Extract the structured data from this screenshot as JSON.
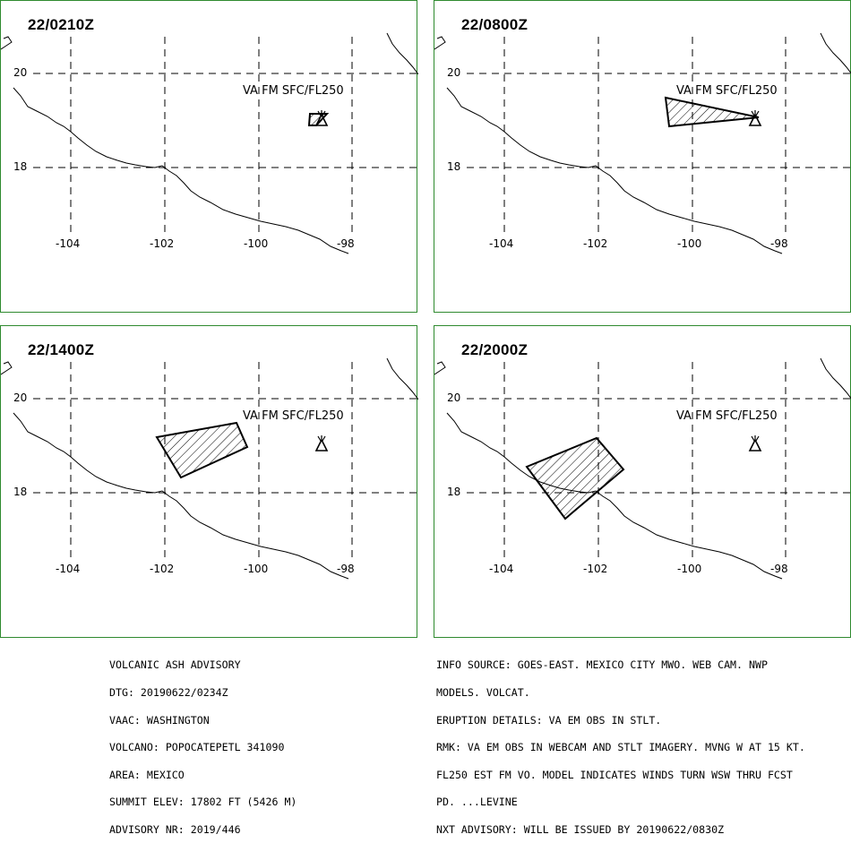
{
  "panels": [
    {
      "time": "22/0210Z",
      "label": "VA FM SFC/FL250",
      "ash": [
        [
          345,
          126
        ],
        [
          364,
          126
        ],
        [
          352,
          139
        ],
        [
          344,
          139
        ]
      ]
    },
    {
      "time": "22/0800Z",
      "label": "VA FM SFC/FL250",
      "ash": [
        [
          742,
          108
        ],
        [
          846,
          130
        ],
        [
          746,
          140
        ]
      ]
    },
    {
      "time": "22/1400Z",
      "label": "VA FM SFC/FL250",
      "ash": [
        [
          174,
          487
        ],
        [
          263,
          471
        ],
        [
          275,
          498
        ],
        [
          201,
          532
        ]
      ]
    },
    {
      "time": "22/2000Z",
      "label": "VA FM SFC/FL250",
      "ash": [
        [
          587,
          520
        ],
        [
          665,
          488
        ],
        [
          695,
          523
        ],
        [
          630,
          578
        ]
      ]
    }
  ],
  "axes": {
    "lat_labels": [
      "20",
      "18"
    ],
    "lon_labels": [
      "-104",
      "-102",
      "-100",
      "-98"
    ]
  },
  "advisory_left": [
    "VOLCANIC ASH ADVISORY",
    "DTG: 20190622/0234Z",
    "VAAC: WASHINGTON",
    "VOLCANO: POPOCATEPETL 341090",
    "AREA: MEXICO",
    "SUMMIT ELEV: 17802 FT (5426 M)",
    "ADVISORY NR: 2019/446"
  ],
  "advisory_right": [
    "INFO SOURCE: GOES-EAST. MEXICO CITY MWO. WEB CAM. NWP",
    "MODELS. VOLCAT.",
    "ERUPTION DETAILS: VA EM OBS IN STLT.",
    "RMK: VA EM OBS IN WEBCAM AND STLT IMAGERY. MVNG W AT 15 KT.",
    "FL250 EST FM VO. MODEL INDICATES WINDS TURN WSW THRU FCST",
    "PD. ...LEVINE",
    "NXT ADVISORY: WILL BE ISSUED BY 20190622/0830Z"
  ],
  "colors": {
    "panel_border": "#2f8a2f",
    "lines": "#000000",
    "background": "#ffffff"
  }
}
